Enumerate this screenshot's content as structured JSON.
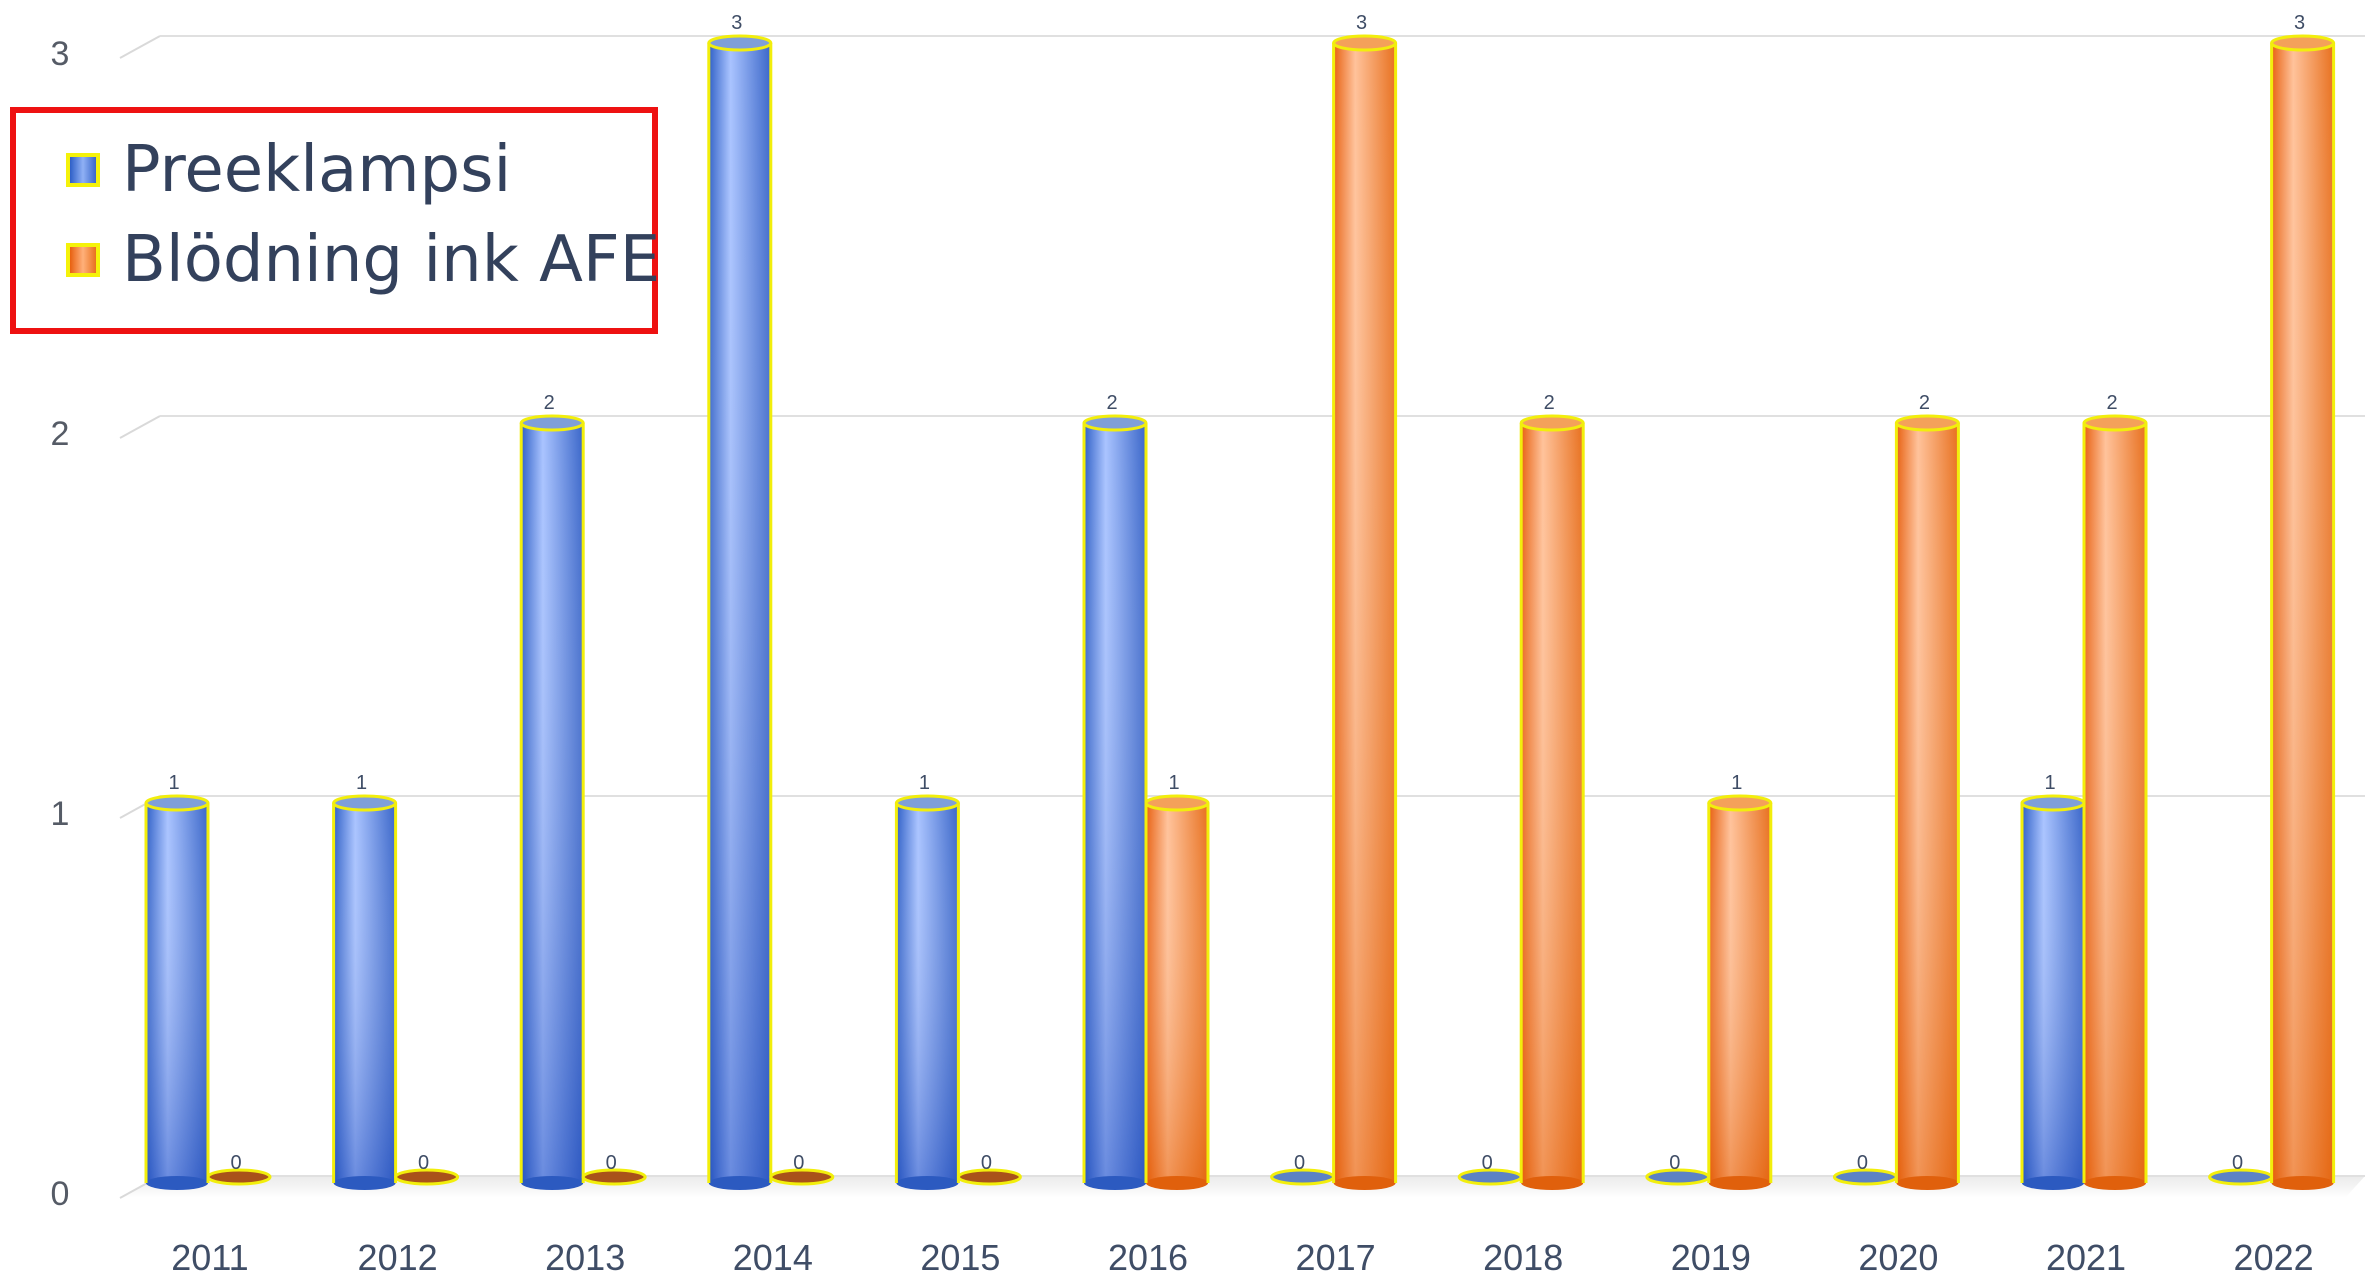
{
  "chart_data": {
    "type": "bar",
    "title": "",
    "xlabel": "",
    "ylabel": "",
    "ylim": [
      0,
      3
    ],
    "yticks": [
      0,
      1,
      2,
      3
    ],
    "grid": true,
    "legend_position": "top-left",
    "categories": [
      "2011",
      "2012",
      "2013",
      "2014",
      "2015",
      "2016",
      "2017",
      "2018",
      "2019",
      "2020",
      "2021",
      "2022"
    ],
    "series": [
      {
        "name": "Preeklampsi",
        "color": "#4a7be0",
        "values": [
          1,
          1,
          2,
          3,
          1,
          2,
          0,
          0,
          0,
          0,
          1,
          0
        ]
      },
      {
        "name": "Blödning ink AFE",
        "color": "#f57f2a",
        "values": [
          0,
          0,
          0,
          0,
          0,
          1,
          3,
          2,
          1,
          2,
          2,
          3
        ]
      }
    ]
  }
}
